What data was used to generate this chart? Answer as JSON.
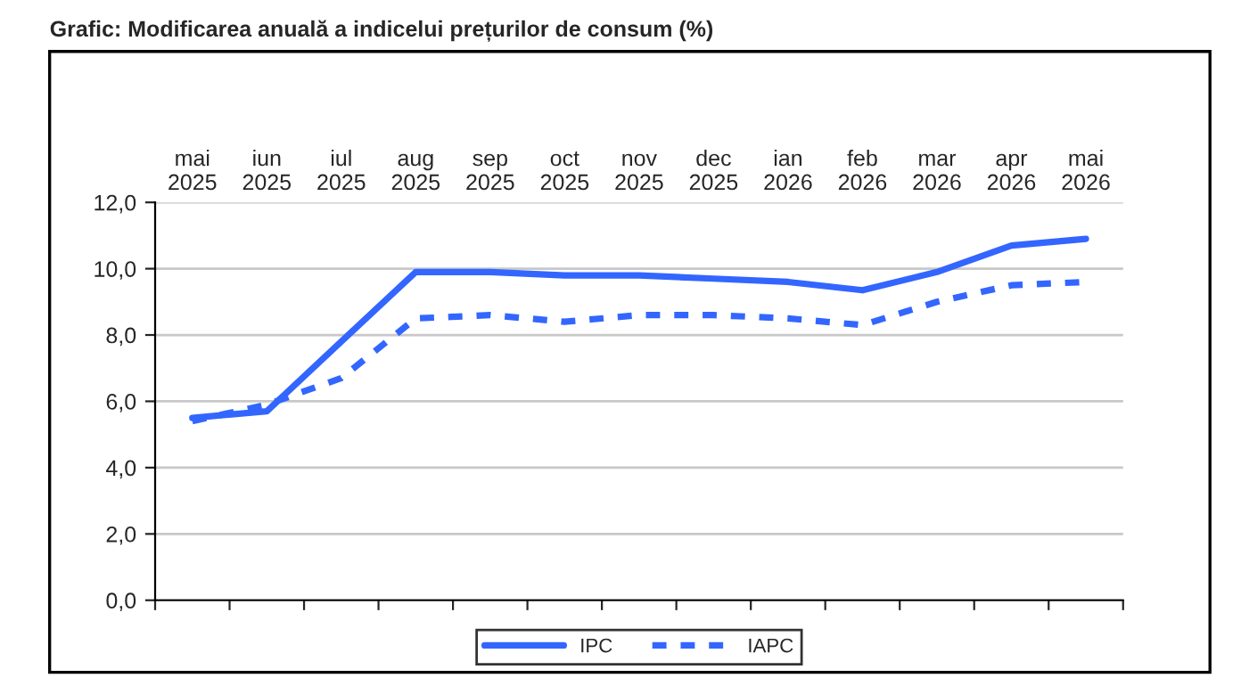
{
  "chart_data": {
    "type": "line",
    "title": "Grafic: Modificarea anuală a indicelui prețurilor de consum (%)",
    "categories": [
      "mai\n2025",
      "iun\n2025",
      "iul\n2025",
      "aug\n2025",
      "sep\n2025",
      "oct\n2025",
      "nov\n2025",
      "dec\n2025",
      "ian\n2026",
      "feb\n2026",
      "mar\n2026",
      "apr\n2026",
      "mai\n2026"
    ],
    "series": [
      {
        "name": "IPC",
        "color": "#3366ff",
        "line_style": "solid",
        "values": [
          5.5,
          5.7,
          7.8,
          9.9,
          9.9,
          9.8,
          9.8,
          9.7,
          9.6,
          9.35,
          9.9,
          10.7,
          10.9
        ]
      },
      {
        "name": "IAPC",
        "color": "#3366ff",
        "line_style": "dashed",
        "values": [
          5.4,
          5.9,
          6.7,
          8.5,
          8.6,
          8.4,
          8.6,
          8.6,
          8.5,
          8.3,
          9.0,
          9.5,
          9.6
        ]
      }
    ],
    "ylim": [
      0,
      12
    ],
    "yticks": [
      {
        "value": 0,
        "label": "0,0"
      },
      {
        "value": 2,
        "label": "2,0"
      },
      {
        "value": 4,
        "label": "4,0"
      },
      {
        "value": 6,
        "label": "6,0"
      },
      {
        "value": 8,
        "label": "8,0"
      },
      {
        "value": 10,
        "label": "10,0"
      },
      {
        "value": 12,
        "label": "12,0"
      }
    ],
    "grid": "y",
    "legend": "bottom",
    "marker": "none"
  }
}
